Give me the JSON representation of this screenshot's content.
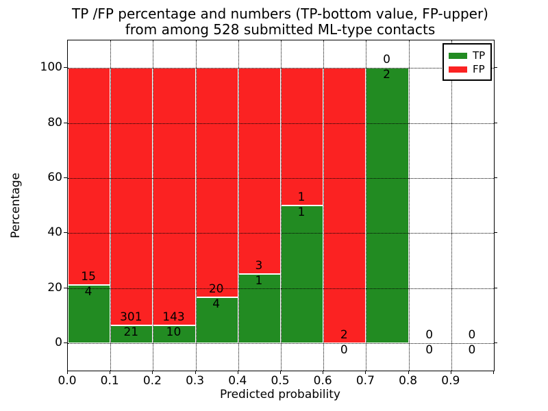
{
  "title": {
    "line1": "TP /FP percentage and numbers (TP-bottom value, FP-upper)",
    "line2": "from among 528 submitted ML-type contacts"
  },
  "axes": {
    "xlabel": "Predicted probability",
    "ylabel": "Percentage",
    "x_tick_labels": [
      "0.0",
      "0.1",
      "0.2",
      "0.3",
      "0.4",
      "0.5",
      "0.6",
      "0.7",
      "0.8",
      "0.9"
    ],
    "y_tick_labels": [
      "0",
      "20",
      "40",
      "60",
      "80",
      "100"
    ],
    "y_tick_values": [
      0,
      20,
      40,
      60,
      80,
      100
    ]
  },
  "legend": {
    "position": "upper right",
    "items": [
      {
        "label": "TP",
        "color": "#228b22"
      },
      {
        "label": "FP",
        "color": "#fb2222"
      }
    ]
  },
  "chart_data": {
    "type": "bar",
    "stacked": true,
    "normalized_to_percent": true,
    "title": "TP /FP percentage and numbers (TP-bottom value, FP-upper)\nfrom among 528 submitted ML-type contacts",
    "xlabel": "Predicted probability",
    "ylabel": "Percentage",
    "xlim": [
      0.0,
      1.0
    ],
    "ylim": [
      -10,
      110
    ],
    "grid": true,
    "legend_position": "upper right",
    "total_contacts": 528,
    "bin_edges": [
      0.0,
      0.1,
      0.2,
      0.3,
      0.4,
      0.5,
      0.6,
      0.7,
      0.8,
      0.9,
      1.0
    ],
    "categories": [
      "0.0-0.1",
      "0.1-0.2",
      "0.2-0.3",
      "0.3-0.4",
      "0.4-0.5",
      "0.5-0.6",
      "0.6-0.7",
      "0.7-0.8",
      "0.8-0.9",
      "0.9-1.0"
    ],
    "series": [
      {
        "name": "TP",
        "color": "#228b22",
        "counts": [
          4,
          21,
          10,
          4,
          1,
          1,
          0,
          2,
          0,
          0
        ]
      },
      {
        "name": "FP",
        "color": "#fb2222",
        "counts": [
          15,
          301,
          143,
          20,
          3,
          1,
          2,
          0,
          0,
          0
        ]
      }
    ],
    "tp_percent_of_bin": [
      21.05,
      6.52,
      6.54,
      16.67,
      25.0,
      50.0,
      0.0,
      100.0,
      null,
      null
    ]
  }
}
